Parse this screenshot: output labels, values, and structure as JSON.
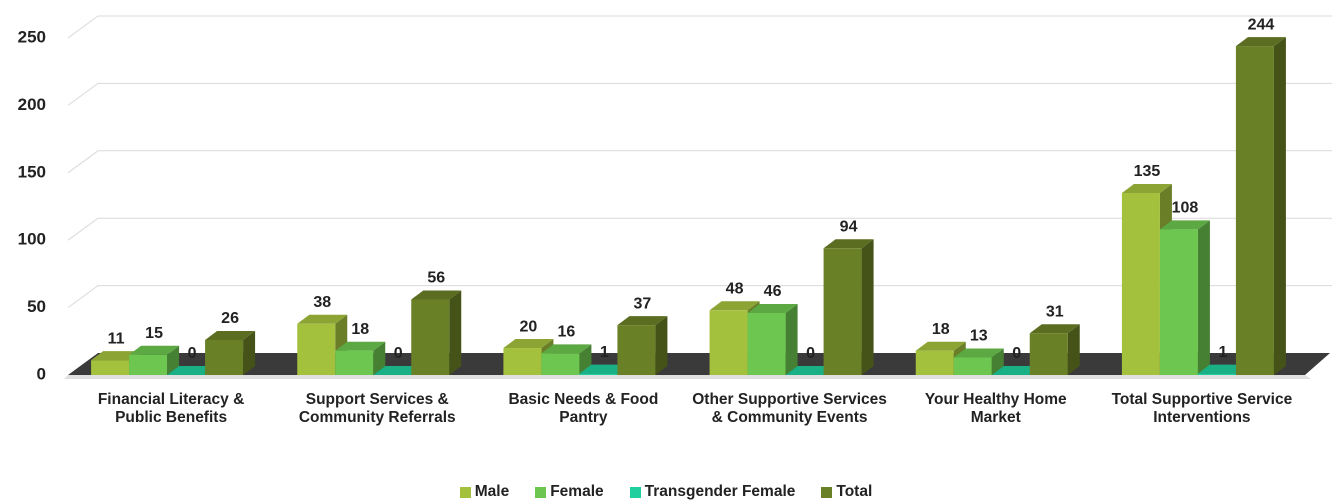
{
  "chart_data": {
    "type": "bar3d",
    "categories": [
      "Financial Literacy & Public Benefits",
      "Support Services & Community Referrals",
      "Basic Needs & Food Pantry",
      "Other Supportive Services & Community Events",
      "Your Healthy Home Market",
      "Total Supportive Service Interventions"
    ],
    "series": [
      {
        "name": "Male",
        "color": "#a3c13c",
        "values": [
          11,
          38,
          20,
          48,
          18,
          135
        ]
      },
      {
        "name": "Female",
        "color": "#6cc64f",
        "values": [
          15,
          18,
          16,
          46,
          13,
          108
        ]
      },
      {
        "name": "Transgender Female",
        "color": "#1fcf9e",
        "values": [
          0,
          0,
          1,
          0,
          0,
          1
        ]
      },
      {
        "name": "Total",
        "color": "#6a8026",
        "values": [
          26,
          56,
          37,
          94,
          31,
          244
        ]
      }
    ],
    "ylim": [
      0,
      250
    ],
    "yticks": [
      0,
      50,
      100,
      150,
      200,
      250
    ],
    "grid": true,
    "legend": "bottom"
  }
}
